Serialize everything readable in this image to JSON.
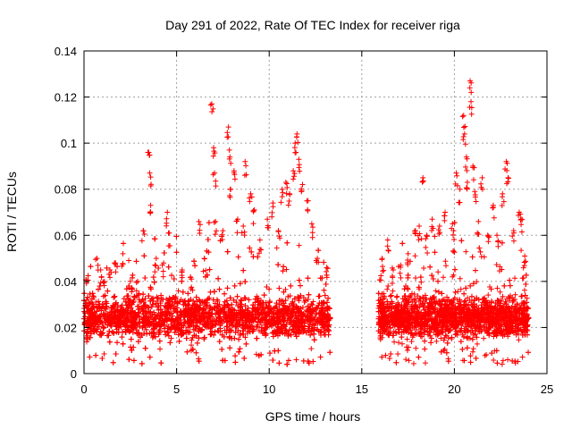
{
  "chart_data": {
    "type": "scatter",
    "title": "Day 291 of 2022, Rate Of TEC Index for receiver riga",
    "xlabel": "GPS time / hours",
    "ylabel": "ROTI / TECUs",
    "xlim": [
      0,
      25
    ],
    "ylim": [
      0,
      0.14
    ],
    "xticks": [
      0,
      5,
      10,
      15,
      20,
      25
    ],
    "xtick_labels": [
      "0",
      "5",
      "10",
      "15",
      "20",
      "25"
    ],
    "yticks": [
      0,
      0.02,
      0.04,
      0.06,
      0.08,
      0.1,
      0.12,
      0.14
    ],
    "ytick_labels": [
      "0",
      "0.02",
      "0.04",
      "0.06",
      "0.08",
      "0.1",
      "0.12",
      "0.14"
    ],
    "grid": true,
    "marker": "+",
    "color": "#ff0000",
    "coverage": [
      {
        "start": 0.0,
        "end": 13.3
      },
      {
        "start": 15.9,
        "end": 24.0
      }
    ],
    "typical_range": [
      0.01,
      0.035
    ],
    "series": [
      {
        "name": "ROTI",
        "points": [
          [
            0.2,
            0.018
          ],
          [
            0.4,
            0.025
          ],
          [
            0.5,
            0.03
          ],
          [
            0.7,
            0.05
          ],
          [
            0.9,
            0.045
          ],
          [
            1.1,
            0.04
          ],
          [
            1.4,
            0.045
          ],
          [
            1.7,
            0.048
          ],
          [
            2.1,
            0.052
          ],
          [
            2.5,
            0.04
          ],
          [
            2.9,
            0.04
          ],
          [
            3.2,
            0.062
          ],
          [
            3.5,
            0.096
          ],
          [
            3.55,
            0.087
          ],
          [
            3.6,
            0.073
          ],
          [
            3.9,
            0.05
          ],
          [
            4.5,
            0.07
          ],
          [
            4.6,
            0.061
          ],
          [
            4.3,
            0.048
          ],
          [
            5.3,
            0.045
          ],
          [
            5.8,
            0.041
          ],
          [
            6.2,
            0.066
          ],
          [
            6.5,
            0.05
          ],
          [
            6.9,
            0.117
          ],
          [
            7.0,
            0.098
          ],
          [
            7.05,
            0.087
          ],
          [
            7.1,
            0.066
          ],
          [
            7.5,
            0.062
          ],
          [
            7.8,
            0.107
          ],
          [
            7.85,
            0.097
          ],
          [
            7.9,
            0.08
          ],
          [
            8.1,
            0.088
          ],
          [
            8.3,
            0.067
          ],
          [
            8.6,
            0.064
          ],
          [
            8.7,
            0.092
          ],
          [
            9.0,
            0.078
          ],
          [
            9.2,
            0.071
          ],
          [
            9.5,
            0.058
          ],
          [
            9.9,
            0.067
          ],
          [
            10.2,
            0.074
          ],
          [
            10.5,
            0.062
          ],
          [
            10.7,
            0.08
          ],
          [
            10.9,
            0.083
          ],
          [
            11.1,
            0.078
          ],
          [
            11.3,
            0.088
          ],
          [
            11.4,
            0.1
          ],
          [
            11.5,
            0.104
          ],
          [
            11.6,
            0.093
          ],
          [
            11.8,
            0.082
          ],
          [
            12.1,
            0.075
          ],
          [
            12.3,
            0.065
          ],
          [
            12.6,
            0.05
          ],
          [
            13.1,
            0.046
          ],
          [
            16.1,
            0.05
          ],
          [
            16.4,
            0.058
          ],
          [
            16.7,
            0.045
          ],
          [
            17.1,
            0.047
          ],
          [
            17.5,
            0.052
          ],
          [
            17.9,
            0.062
          ],
          [
            18.1,
            0.064
          ],
          [
            18.3,
            0.085
          ],
          [
            18.5,
            0.06
          ],
          [
            18.8,
            0.067
          ],
          [
            19.2,
            0.064
          ],
          [
            19.5,
            0.07
          ],
          [
            19.9,
            0.065
          ],
          [
            20.1,
            0.087
          ],
          [
            20.3,
            0.08
          ],
          [
            20.5,
            0.112
          ],
          [
            20.55,
            0.104
          ],
          [
            20.65,
            0.094
          ],
          [
            20.7,
            0.083
          ],
          [
            20.85,
            0.127
          ],
          [
            20.9,
            0.118
          ],
          [
            21.0,
            0.09
          ],
          [
            21.1,
            0.079
          ],
          [
            21.3,
            0.066
          ],
          [
            21.5,
            0.085
          ],
          [
            21.8,
            0.06
          ],
          [
            22.1,
            0.073
          ],
          [
            22.3,
            0.06
          ],
          [
            22.6,
            0.078
          ],
          [
            22.8,
            0.092
          ],
          [
            22.9,
            0.085
          ],
          [
            23.2,
            0.062
          ],
          [
            23.5,
            0.07
          ],
          [
            23.6,
            0.067
          ],
          [
            23.8,
            0.051
          ]
        ]
      }
    ]
  }
}
